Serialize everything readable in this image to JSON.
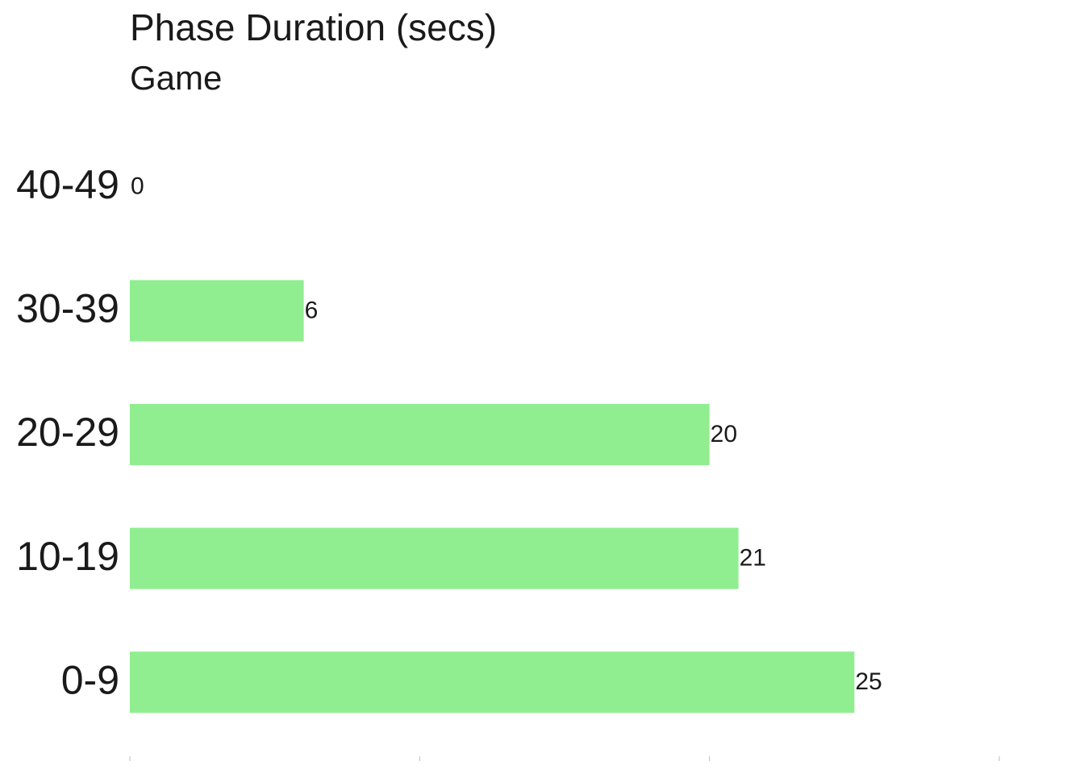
{
  "chart_data": {
    "type": "barh",
    "title": "Phase Duration (secs)",
    "subtitle": "Game",
    "categories": [
      "0-9",
      "10-19",
      "20-29",
      "30-39",
      "40-49"
    ],
    "values": [
      25,
      21,
      20,
      6,
      0
    ],
    "color": "#90ee90",
    "xlim": [
      0,
      30
    ],
    "xticks": [
      0,
      10,
      20,
      30
    ],
    "grid": false
  }
}
